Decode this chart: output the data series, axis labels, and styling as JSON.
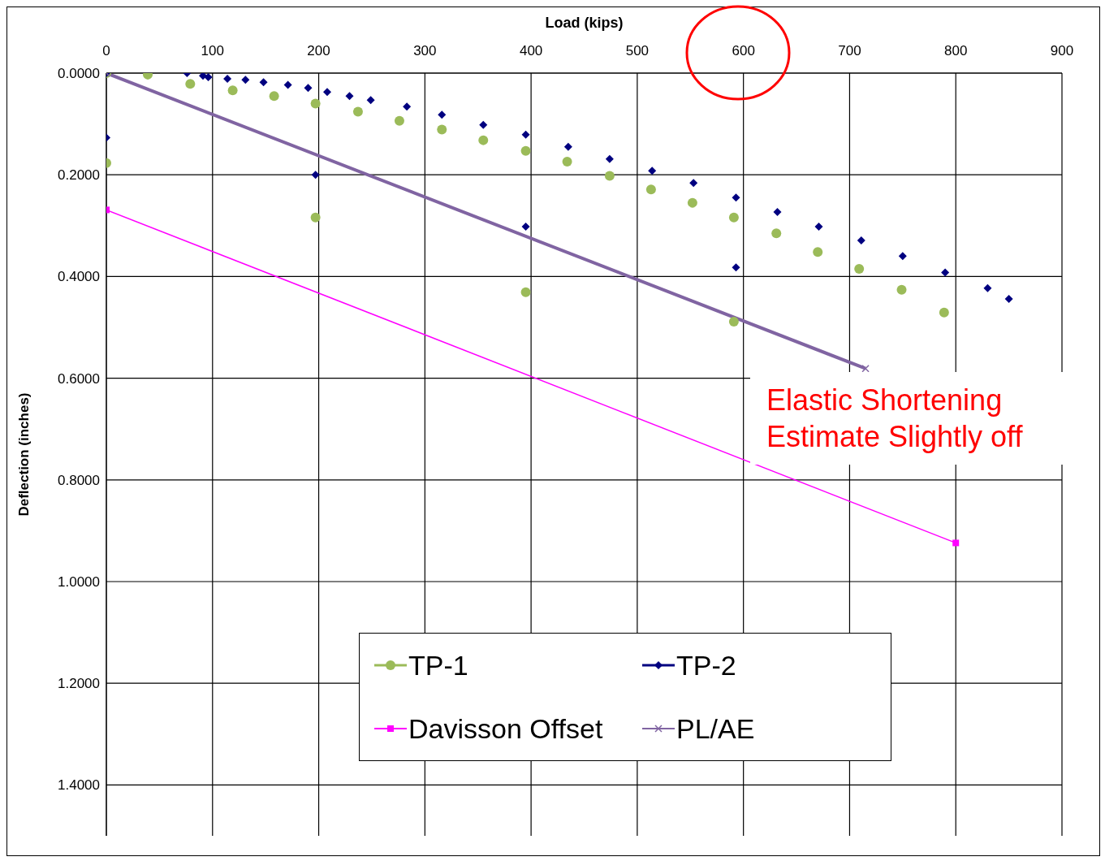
{
  "chart_data": {
    "type": "scatter",
    "xlabel": "Load (kips)",
    "ylabel": "Deflection (inches)",
    "xlim": [
      0,
      900
    ],
    "xticks": [
      0,
      100,
      200,
      300,
      400,
      500,
      600,
      700,
      800,
      900
    ],
    "ylim": [
      1.5,
      0
    ],
    "yticks": [
      {
        "value": 0,
        "label": "0.0000"
      },
      {
        "value": 0.2,
        "label": "0.2000"
      },
      {
        "value": 0.4,
        "label": "0.4000"
      },
      {
        "value": 0.6,
        "label": "0.6000"
      },
      {
        "value": 0.8,
        "label": "0.8000"
      },
      {
        "value": 1.0,
        "label": "1.0000"
      },
      {
        "value": 1.2,
        "label": "1.2000"
      },
      {
        "value": 1.4,
        "label": "1.4000"
      }
    ],
    "grid": true,
    "legend": "bottom",
    "annotations": [
      "Elastic Shortening Estimate Slightly off"
    ],
    "series": [
      {
        "name": "TP-1",
        "marker": "circle",
        "color": "#9bbb59",
        "x": [
          0,
          39,
          79,
          119,
          158,
          197,
          197,
          0,
          237,
          276,
          316,
          355,
          395,
          395,
          434,
          474,
          513,
          552,
          591,
          591,
          631,
          670,
          709,
          749,
          789
        ],
        "values": [
          0,
          0.003,
          0.021,
          0.034,
          0.045,
          0.06,
          0.284,
          0.177,
          0.076,
          0.094,
          0.111,
          0.132,
          0.153,
          0.431,
          0.174,
          0.202,
          0.229,
          0.255,
          0.284,
          0.489,
          0.315,
          0.352,
          0.385,
          0.426,
          0.471
        ]
      },
      {
        "name": "TP-2",
        "marker": "diamond",
        "color": "#000080",
        "x": [
          0,
          76,
          91,
          96,
          114,
          131,
          148,
          171,
          190,
          208,
          229,
          249,
          283,
          316,
          355,
          395,
          435,
          474,
          514,
          553,
          593,
          632,
          671,
          711,
          750,
          790,
          830,
          850,
          0,
          197,
          395,
          593
        ],
        "values": [
          0,
          0,
          0.005,
          0.008,
          0.011,
          0.013,
          0.018,
          0.023,
          0.029,
          0.037,
          0.045,
          0.053,
          0.066,
          0.082,
          0.102,
          0.121,
          0.145,
          0.169,
          0.192,
          0.216,
          0.245,
          0.273,
          0.302,
          0.329,
          0.36,
          0.392,
          0.423,
          0.444,
          0.127,
          0.2,
          0.302,
          0.382
        ]
      },
      {
        "name": "Davisson Offset",
        "type": "line",
        "marker": "square",
        "line_style": "solid",
        "color": "#ff00ff",
        "x": [
          0,
          800
        ],
        "values": [
          0.269,
          0.924
        ]
      },
      {
        "name": "PL/AE",
        "type": "line",
        "marker": "cross",
        "line_style": "solid",
        "color": "#8064a2",
        "x": [
          0,
          715
        ],
        "values": [
          0,
          0.581
        ]
      }
    ]
  }
}
